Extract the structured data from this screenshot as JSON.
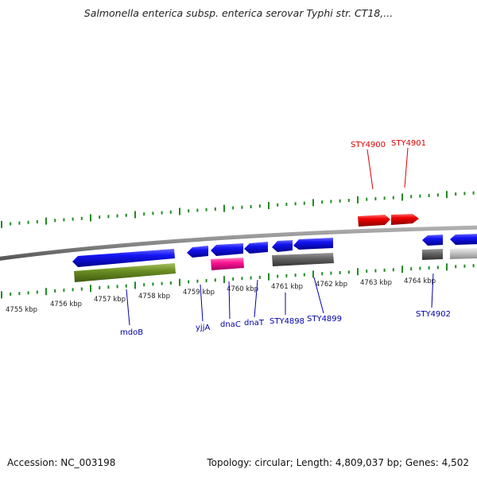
{
  "title": "Salmonella enterica subsp. enterica serovar Typhi str. CT18,...",
  "footer": {
    "accession": "Accession: NC_003198",
    "topology": "Topology: circular; Length: 4,809,037 bp; Genes: 4,502"
  },
  "scale_labels": [
    "4755 kbp",
    "4756 kbp",
    "4757 kbp",
    "4758 kbp",
    "4759 kbp",
    "4760 kbp",
    "4761 kbp",
    "4762 kbp",
    "4763 kbp",
    "4764 kbp"
  ],
  "gene_labels_top": [
    "STY4900",
    "STY4901"
  ],
  "gene_labels_bottom": [
    "mdoB",
    "yjjA",
    "dnaC",
    "dnaT",
    "STY4898",
    "STY4899",
    "STY4902"
  ],
  "colors": {
    "forward_gene": "#ee0000",
    "reverse_gene": "#0000ee",
    "olive_feature": "#6b8e23",
    "magenta_feature": "#ff1493",
    "dark_gray_feature": "#666666",
    "light_gray_feature": "#c8c8c8",
    "backbone": "#888888",
    "tick": "#228b22",
    "top_label": "#dd0000",
    "bottom_label": "#0000aa"
  }
}
